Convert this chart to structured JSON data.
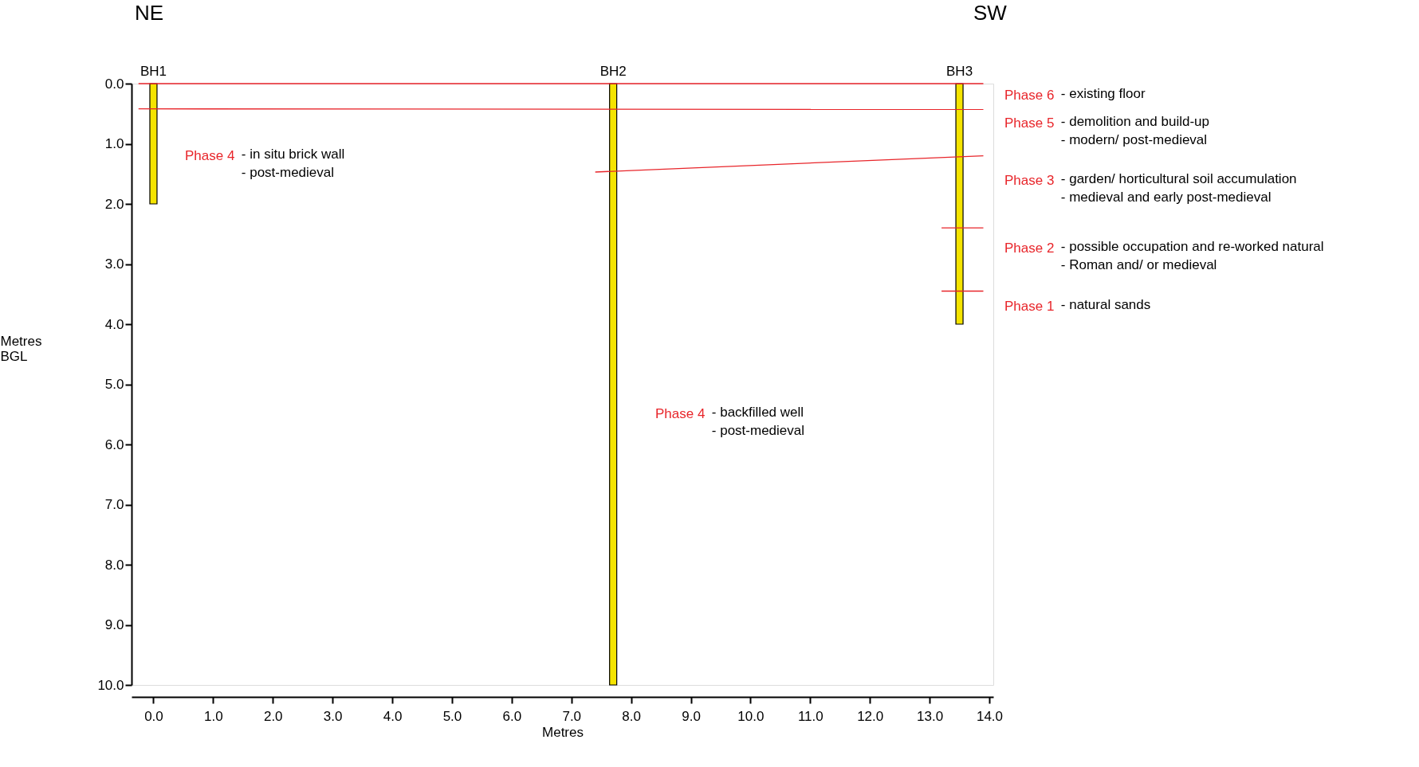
{
  "chart_data": {
    "type": "bar",
    "x": [
      0,
      7.7,
      13.5
    ],
    "values": [
      2.0,
      10.0,
      4.0
    ],
    "color": "#f5e400",
    "series": [
      {
        "type": "line",
        "color": "#e8252a",
        "x": [
          -0.25,
          13.9
        ],
        "values": [
          0.0,
          0.0
        ]
      },
      {
        "type": "line",
        "color": "#e8252a",
        "x": [
          -0.25,
          13.9
        ],
        "values": [
          0.42,
          0.43
        ]
      },
      {
        "type": "line",
        "color": "#e8252a",
        "x": [
          7.4,
          13.9
        ],
        "values": [
          1.47,
          1.2
        ]
      },
      {
        "type": "line",
        "color": "#e8252a",
        "x": [
          13.2,
          13.9
        ],
        "values": [
          2.4,
          2.4
        ]
      },
      {
        "type": "line",
        "color": "#e8252a",
        "x": [
          13.2,
          13.9
        ],
        "values": [
          3.45,
          3.45
        ]
      }
    ],
    "xlabel": "Metres",
    "ylabel": "Metres\nBGL",
    "xlim": [
      -0.3,
      14.0
    ],
    "ylim": [
      10.0,
      0.0
    ],
    "xticks": [
      {
        "value": 0,
        "label": "0.0"
      },
      {
        "value": 1,
        "label": "1.0"
      },
      {
        "value": 2,
        "label": "2.0"
      },
      {
        "value": 3,
        "label": "3.0"
      },
      {
        "value": 4,
        "label": "4.0"
      },
      {
        "value": 5,
        "label": "5.0"
      },
      {
        "value": 6,
        "label": "6.0"
      },
      {
        "value": 7,
        "label": "7.0"
      },
      {
        "value": 8,
        "label": "8.0"
      },
      {
        "value": 9,
        "label": "9.0"
      },
      {
        "value": 10,
        "label": "10.0"
      },
      {
        "value": 11,
        "label": "11.0"
      },
      {
        "value": 12,
        "label": "12.0"
      },
      {
        "value": 13,
        "label": "13.0"
      },
      {
        "value": 14,
        "label": "14.0"
      }
    ],
    "yticks": [
      {
        "value": 0,
        "label": "0.0"
      },
      {
        "value": 1,
        "label": "1.0"
      },
      {
        "value": 2,
        "label": "2.0"
      },
      {
        "value": 3,
        "label": "3.0"
      },
      {
        "value": 4,
        "label": "4.0"
      },
      {
        "value": 5,
        "label": "5.0"
      },
      {
        "value": 6,
        "label": "6.0"
      },
      {
        "value": 7,
        "label": "7.0"
      },
      {
        "value": 8,
        "label": "8.0"
      },
      {
        "value": 9,
        "label": "9.0"
      },
      {
        "value": 10,
        "label": "10.0"
      }
    ],
    "grid": false,
    "annotations": [
      "NE",
      "SW",
      {
        "text": "BH1",
        "x": 0,
        "y": 0
      },
      {
        "text": "BH2",
        "x": 7.7,
        "y": 0
      },
      {
        "text": "BH3",
        "x": 13.5,
        "y": 0
      },
      "Phase 4 - in situ  brick wall\n- post-medieval",
      "Phase 4 - backfilled well\n- post-medieval",
      "Phase 6 - existing floor",
      "Phase 5 - demolition and build-up\n- modern/ post-medieval",
      "Phase 3 - garden/ horticultural soil accumulation\n- medieval and early post-medieval",
      "Phase 2 - possible occupation and re-worked natural\n- Roman and/ or medieval",
      "Phase 1 - natural sands"
    ]
  }
}
